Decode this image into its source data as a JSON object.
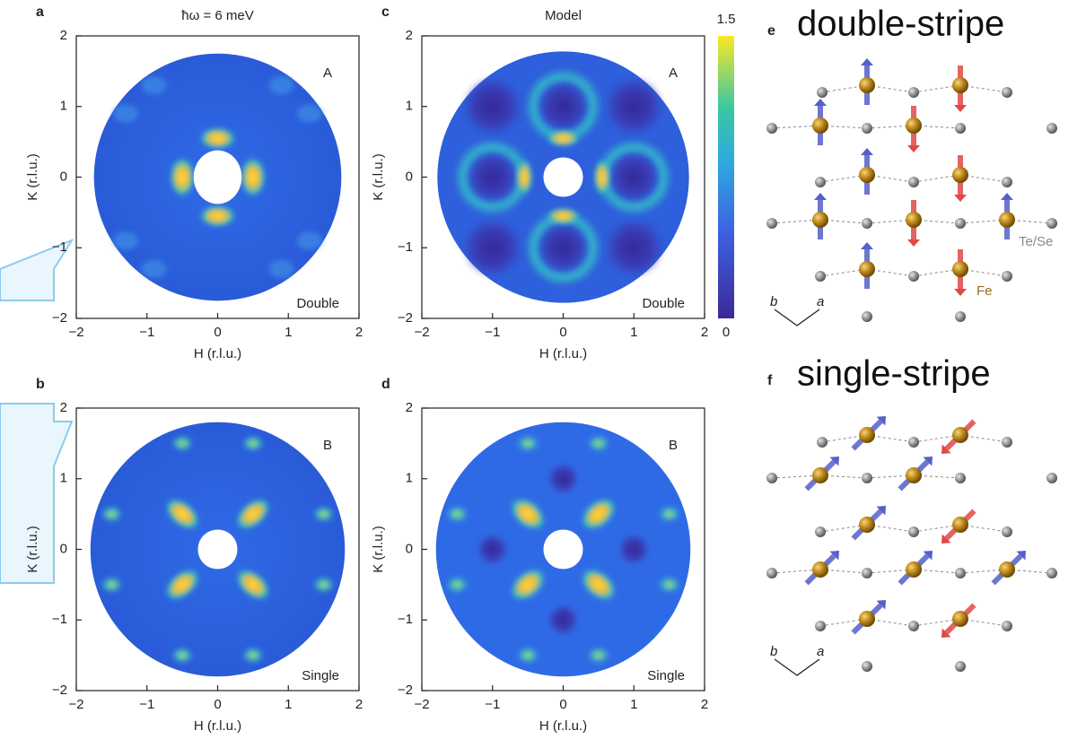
{
  "axis_ticks": [
    {
      "value": -2,
      "label": "−2"
    },
    {
      "value": -1,
      "label": "−1"
    },
    0,
    1,
    2
  ],
  "colorbar_ticks": [
    0,
    1.5
  ],
  "panels": [
    {
      "letter": "a",
      "title": "ħω = 6 meV",
      "corner": "A",
      "tag": "Double",
      "xlabel": "H (r.l.u.)",
      "ylabel": "K (r.l.u.)"
    },
    {
      "letter": "b",
      "corner": "B",
      "tag": "Single",
      "xlabel": "H (r.l.u.)",
      "ylabel": "K (r.l.u.)"
    },
    {
      "letter": "c",
      "title": "Model",
      "corner": "A",
      "tag": "Double",
      "xlabel": "H (r.l.u.)",
      "ylabel": "K (r.l.u.)"
    },
    {
      "letter": "d",
      "corner": "B",
      "tag": "Single",
      "xlabel": "H (r.l.u.)",
      "ylabel": "K (r.l.u.)"
    }
  ],
  "diagrams": [
    {
      "letter": "e",
      "title": "double-stripe",
      "labels": [
        "Te/Se",
        "Fe"
      ],
      "axes": [
        "b",
        "a"
      ]
    },
    {
      "letter": "f",
      "title": "single-stripe",
      "axes": [
        "b",
        "a"
      ]
    }
  ]
}
